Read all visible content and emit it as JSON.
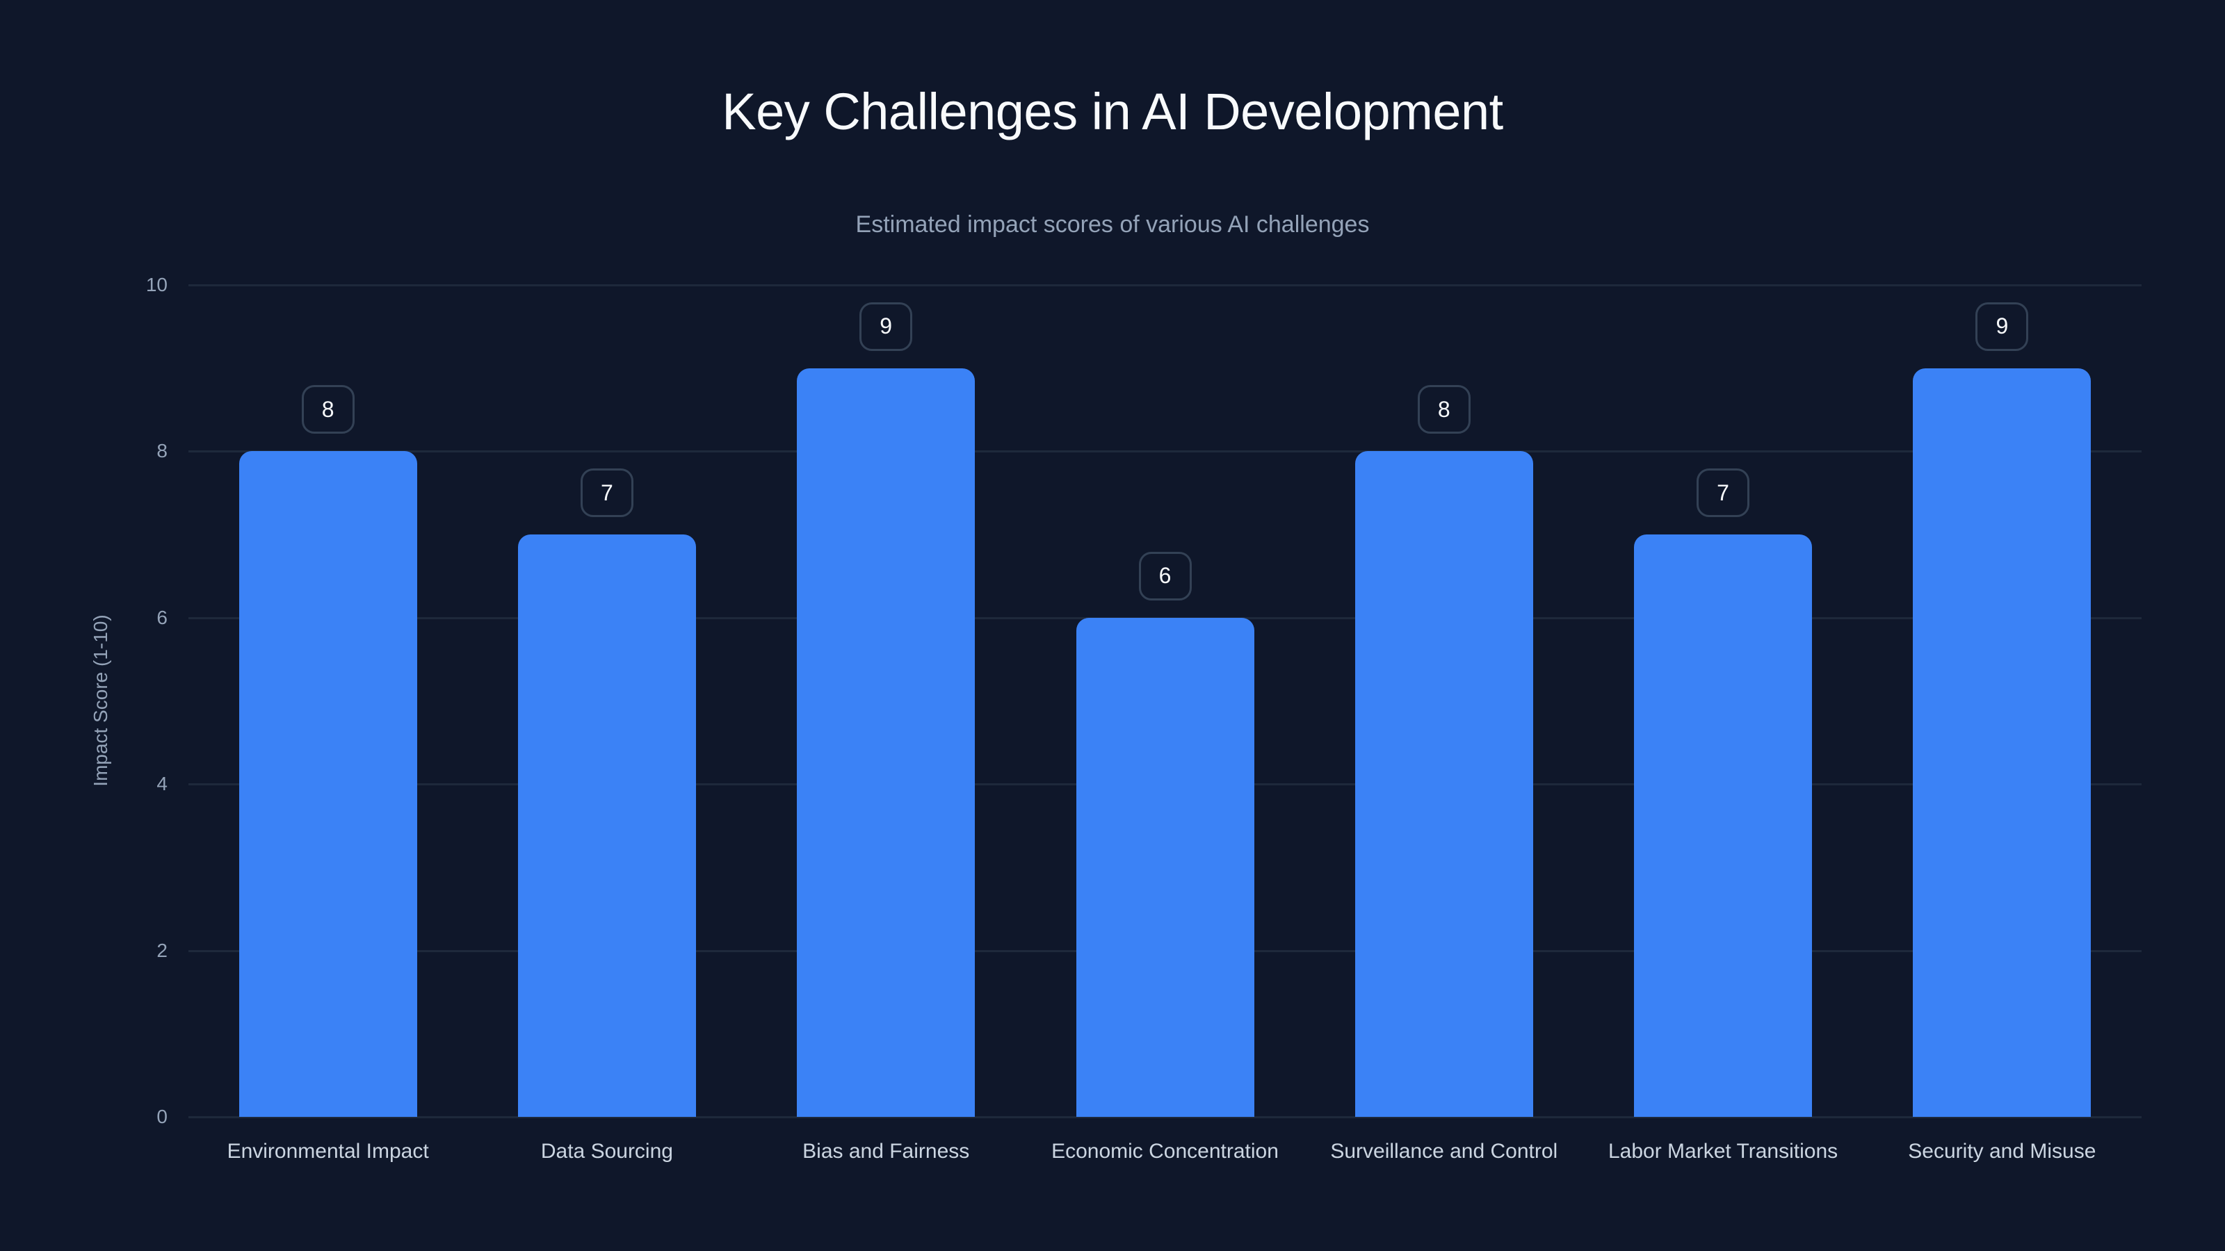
{
  "header": {
    "title": "Key Challenges in AI Development",
    "subtitle": "Estimated impact scores of various AI challenges"
  },
  "axes": {
    "ylabel": "Impact Score (1-10)",
    "yticks": [
      "0",
      "2",
      "4",
      "6",
      "8",
      "10"
    ]
  },
  "colors": {
    "background": "#0f172a",
    "bar": "#3b82f6",
    "grid": "#1e293b",
    "badge_border": "#334155"
  },
  "chart_data": {
    "type": "bar",
    "title": "Key Challenges in AI Development",
    "subtitle": "Estimated impact scores of various AI challenges",
    "xlabel": "",
    "ylabel": "Impact Score (1-10)",
    "ylim": [
      0,
      10
    ],
    "yticks": [
      0,
      2,
      4,
      6,
      8,
      10
    ],
    "grid": true,
    "legend": null,
    "categories": [
      "Environmental Impact",
      "Data Sourcing",
      "Bias and Fairness",
      "Economic Concentration",
      "Surveillance and Control",
      "Labor Market Transitions",
      "Security and Misuse"
    ],
    "values": [
      8,
      7,
      9,
      6,
      8,
      7,
      9
    ],
    "data_labels": [
      "8",
      "7",
      "9",
      "6",
      "8",
      "7",
      "9"
    ]
  }
}
